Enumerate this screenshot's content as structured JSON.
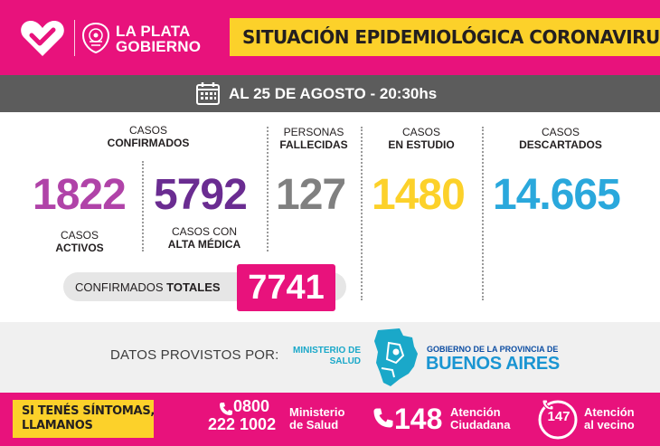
{
  "header": {
    "brand_line1": "LA PLATA",
    "brand_line2": "GOBIERNO",
    "title": "SITUACIÓN EPIDEMIOLÓGICA CORONAVIRUS",
    "colors": {
      "magenta": "#e8127c",
      "yellow": "#fcd12a"
    },
    "icons": [
      "heart-logo-icon",
      "city-seal-icon"
    ]
  },
  "date_bar": {
    "text": "AL 25 DE AGOSTO - 20:30hs",
    "icon": "calendar-icon"
  },
  "stats": {
    "confirmados": {
      "label_line1": "CASOS",
      "label_line2": "CONFIRMADOS"
    },
    "activos": {
      "value": "1822",
      "label_line1": "CASOS",
      "label_line2": "ACTIVOS",
      "color": "#b043a8"
    },
    "alta_medica": {
      "value": "5792",
      "label_line1": "CASOS CON",
      "label_line2": "ALTA MÉDICA",
      "color": "#6a2c91"
    },
    "fallecidas": {
      "value": "127",
      "label_line1": "PERSONAS",
      "label_line2": "FALLECIDAS",
      "color": "#808080"
    },
    "en_estudio": {
      "value": "1480",
      "label_line1": "CASOS",
      "label_line2": "EN ESTUDIO",
      "color": "#fcd12a"
    },
    "descartados": {
      "value": "14.665",
      "label_line1": "CASOS",
      "label_line2": "DESCARTADOS",
      "color": "#2aa8dc"
    },
    "totales": {
      "label_normal": "CONFIRMADOS ",
      "label_bold": "TOTALES",
      "value": "7741"
    }
  },
  "provider": {
    "label": "DATOS PROVISTOS POR:",
    "ministerio_line1": "MINISTERIO DE",
    "ministerio_line2": "SALUD",
    "gobierno_line": "GOBIERNO DE LA PROVINCIA DE",
    "province": "BUENOS AIRES",
    "icon": "buenos-aires-map-icon"
  },
  "footer": {
    "symptoms_line1": "SI TENÉS SÍNTOMAS,",
    "symptoms_line2": "LLAMANOS",
    "phone1_line1": "0800",
    "phone1_line2": "222 1002",
    "phone1_desc_line1": "Ministerio",
    "phone1_desc_line2": "de Salud",
    "phone2_number": "148",
    "phone2_desc_line1": "Atención",
    "phone2_desc_line2": "Ciudadana",
    "phone3_number": "147",
    "phone3_desc_line1": "Atención",
    "phone3_desc_line2": "al vecino",
    "icons": [
      "phone-icon",
      "phone-icon",
      "phone-circle-icon"
    ]
  }
}
